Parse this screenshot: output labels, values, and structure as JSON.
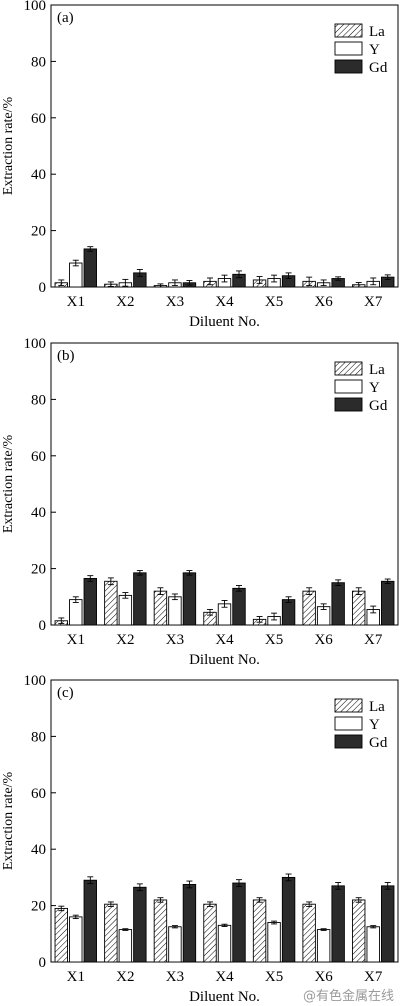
{
  "watermark": "@有色金属在线",
  "chart_data": [
    {
      "type": "bar",
      "panel_label": "(a)",
      "xlabel": "Diluent No.",
      "ylabel": "Extraction rate/%",
      "ylim": [
        0,
        100
      ],
      "yticks": [
        0,
        20,
        40,
        60,
        80,
        100
      ],
      "categories": [
        "X1",
        "X2",
        "X3",
        "X4",
        "X5",
        "X6",
        "X7"
      ],
      "legend_position": "top-right",
      "series": [
        {
          "name": "La",
          "style": "hatched",
          "values": [
            1.5,
            1.0,
            0.5,
            2.0,
            2.5,
            2.0,
            0.8
          ],
          "errors": [
            1.0,
            0.8,
            0.6,
            1.2,
            1.2,
            1.5,
            0.8
          ]
        },
        {
          "name": "Y",
          "style": "open",
          "values": [
            8.5,
            1.5,
            1.5,
            3.0,
            3.0,
            1.5,
            2.0
          ],
          "errors": [
            1.0,
            1.2,
            1.0,
            1.2,
            1.2,
            1.0,
            1.2
          ]
        },
        {
          "name": "Gd",
          "style": "filled",
          "values": [
            13.5,
            5.0,
            1.5,
            4.5,
            4.0,
            3.0,
            3.5
          ],
          "errors": [
            0.8,
            1.2,
            0.8,
            1.2,
            1.0,
            0.6,
            0.8
          ]
        }
      ]
    },
    {
      "type": "bar",
      "panel_label": "(b)",
      "xlabel": "Diluent No.",
      "ylabel": "Extraction rate/%",
      "ylim": [
        0,
        100
      ],
      "yticks": [
        0,
        20,
        40,
        60,
        80,
        100
      ],
      "categories": [
        "X1",
        "X2",
        "X3",
        "X4",
        "X5",
        "X6",
        "X7"
      ],
      "legend_position": "top-right",
      "series": [
        {
          "name": "La",
          "style": "hatched",
          "values": [
            1.5,
            15.5,
            12.0,
            4.5,
            2.0,
            12.0,
            12.0
          ],
          "errors": [
            1.0,
            1.2,
            1.2,
            1.0,
            1.0,
            1.2,
            1.2
          ]
        },
        {
          "name": "Y",
          "style": "open",
          "values": [
            9.0,
            10.5,
            10.0,
            7.5,
            3.0,
            6.5,
            5.5
          ],
          "errors": [
            1.0,
            1.0,
            1.0,
            1.2,
            1.2,
            1.0,
            1.2
          ]
        },
        {
          "name": "Gd",
          "style": "filled",
          "values": [
            16.5,
            18.5,
            18.5,
            13.0,
            9.0,
            15.0,
            15.5
          ],
          "errors": [
            1.0,
            0.8,
            0.8,
            1.0,
            1.0,
            1.0,
            0.8
          ]
        }
      ]
    },
    {
      "type": "bar",
      "panel_label": "(c)",
      "xlabel": "Diluent No.",
      "ylabel": "Extraction rate/%",
      "ylim": [
        0,
        100
      ],
      "yticks": [
        0,
        20,
        40,
        60,
        80,
        100
      ],
      "categories": [
        "X1",
        "X2",
        "X3",
        "X4",
        "X5",
        "X6",
        "X7"
      ],
      "legend_position": "top-right",
      "series": [
        {
          "name": "La",
          "style": "hatched",
          "values": [
            19.0,
            20.5,
            22.0,
            20.5,
            22.0,
            20.5,
            22.0
          ],
          "errors": [
            0.8,
            0.8,
            0.8,
            0.8,
            0.8,
            0.8,
            0.8
          ]
        },
        {
          "name": "Y",
          "style": "open",
          "values": [
            16.0,
            11.5,
            12.5,
            13.0,
            14.0,
            11.5,
            12.5
          ],
          "errors": [
            0.6,
            0.3,
            0.4,
            0.4,
            0.5,
            0.3,
            0.4
          ]
        },
        {
          "name": "Gd",
          "style": "filled",
          "values": [
            29.0,
            26.5,
            27.5,
            28.0,
            30.0,
            27.0,
            27.0
          ],
          "errors": [
            1.2,
            1.2,
            1.2,
            1.2,
            1.2,
            1.2,
            1.2
          ]
        }
      ]
    }
  ]
}
